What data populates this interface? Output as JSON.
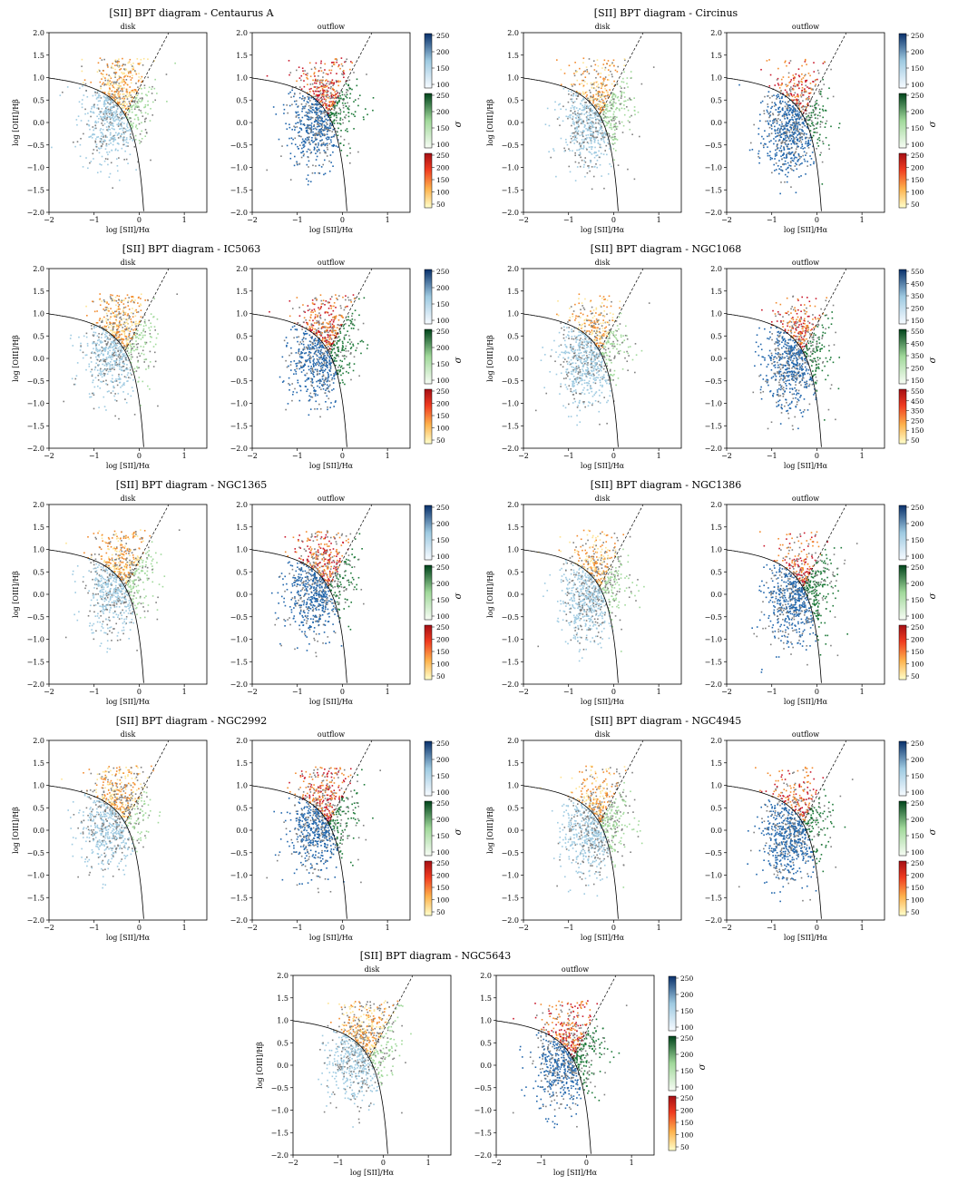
{
  "figure": {
    "colorbar_label": "σ",
    "subplot_labels": [
      "disk",
      "outflow"
    ],
    "xlabel": "log [SII]/Hα",
    "ylabel": "log [OIII]/Hβ",
    "xlim": [
      -2,
      1.5
    ],
    "ylim": [
      -2.0,
      2.0
    ],
    "xticks": [
      "−2",
      "−1",
      "0",
      "1"
    ],
    "yticks": [
      "2.0",
      "1.5",
      "1.0",
      "0.5",
      "0.0",
      "−0.5",
      "−1.0",
      "−1.5",
      "−2.0"
    ],
    "colormaps": [
      "Blues",
      "Greens",
      "YlOrRd"
    ],
    "colors": {
      "grey": "#7f7f7f",
      "blue": "#2166ac",
      "green": "#1b7837",
      "orange": "#f28a2d",
      "red": "#c9182b",
      "yellow": "#fee391"
    }
  },
  "chart_data": [
    {
      "type": "scatter",
      "title": "[SII] BPT diagram - Centaurus A",
      "panels": [
        "disk",
        "outflow"
      ],
      "colorbar_ticks": [
        [
          "250",
          "200",
          "150",
          "100"
        ],
        [
          "250",
          "200",
          "150",
          "100"
        ],
        [
          "250",
          "200",
          "150",
          "100",
          "50"
        ]
      ]
    },
    {
      "type": "scatter",
      "title": "[SII] BPT diagram - Circinus",
      "panels": [
        "disk",
        "outflow"
      ],
      "colorbar_ticks": [
        [
          "250",
          "200",
          "150",
          "100"
        ],
        [
          "250",
          "200",
          "150",
          "100"
        ],
        [
          "250",
          "200",
          "150",
          "100",
          "50"
        ]
      ]
    },
    {
      "type": "scatter",
      "title": "[SII] BPT diagram - IC5063",
      "panels": [
        "disk",
        "outflow"
      ],
      "colorbar_ticks": [
        [
          "250",
          "200",
          "150",
          "100"
        ],
        [
          "250",
          "200",
          "150",
          "100"
        ],
        [
          "250",
          "200",
          "150",
          "100",
          "50"
        ]
      ]
    },
    {
      "type": "scatter",
      "title": "[SII] BPT diagram - NGC1068",
      "panels": [
        "disk",
        "outflow"
      ],
      "colorbar_ticks": [
        [
          "550",
          "450",
          "350",
          "250",
          "150"
        ],
        [
          "550",
          "450",
          "350",
          "250",
          "150"
        ],
        [
          "550",
          "450",
          "350",
          "250",
          "150",
          "50"
        ]
      ]
    },
    {
      "type": "scatter",
      "title": "[SII] BPT diagram - NGC1365",
      "panels": [
        "disk",
        "outflow"
      ],
      "colorbar_ticks": [
        [
          "250",
          "200",
          "150",
          "100"
        ],
        [
          "250",
          "200",
          "150",
          "100"
        ],
        [
          "250",
          "200",
          "150",
          "100",
          "50"
        ]
      ]
    },
    {
      "type": "scatter",
      "title": "[SII] BPT diagram - NGC1386",
      "panels": [
        "disk",
        "outflow"
      ],
      "colorbar_ticks": [
        [
          "250",
          "200",
          "150",
          "100"
        ],
        [
          "250",
          "200",
          "150",
          "100"
        ],
        [
          "250",
          "200",
          "150",
          "100",
          "50"
        ]
      ]
    },
    {
      "type": "scatter",
      "title": "[SII] BPT diagram - NGC2992",
      "panels": [
        "disk",
        "outflow"
      ],
      "colorbar_ticks": [
        [
          "250",
          "200",
          "150",
          "100"
        ],
        [
          "250",
          "200",
          "150",
          "100"
        ],
        [
          "250",
          "200",
          "150",
          "100",
          "50"
        ]
      ]
    },
    {
      "type": "scatter",
      "title": "[SII] BPT diagram - NGC4945",
      "panels": [
        "disk",
        "outflow"
      ],
      "colorbar_ticks": [
        [
          "250",
          "200",
          "150",
          "100"
        ],
        [
          "250",
          "200",
          "150",
          "100"
        ],
        [
          "250",
          "200",
          "150",
          "100",
          "50"
        ]
      ]
    },
    {
      "type": "scatter",
      "title": "[SII] BPT diagram - NGC5643",
      "panels": [
        "disk",
        "outflow"
      ],
      "colorbar_ticks": [
        [
          "250",
          "200",
          "150",
          "100"
        ],
        [
          "250",
          "200",
          "150",
          "100"
        ],
        [
          "250",
          "200",
          "150",
          "100",
          "50"
        ]
      ]
    }
  ]
}
